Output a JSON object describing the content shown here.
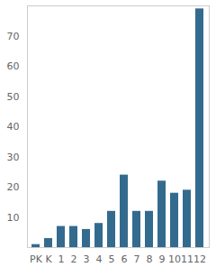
{
  "chart_data": {
    "type": "bar",
    "categories": [
      "PK",
      "K",
      "1",
      "2",
      "3",
      "4",
      "5",
      "6",
      "7",
      "8",
      "9",
      "10",
      "11",
      "12"
    ],
    "values": [
      1,
      3,
      7,
      7,
      6,
      8,
      12,
      24,
      12,
      12,
      22,
      18,
      19,
      79
    ],
    "color": "#336b8e",
    "ylim": [
      0,
      80
    ],
    "yticks": [
      10,
      20,
      30,
      40,
      50,
      60,
      70
    ],
    "grid": false
  }
}
